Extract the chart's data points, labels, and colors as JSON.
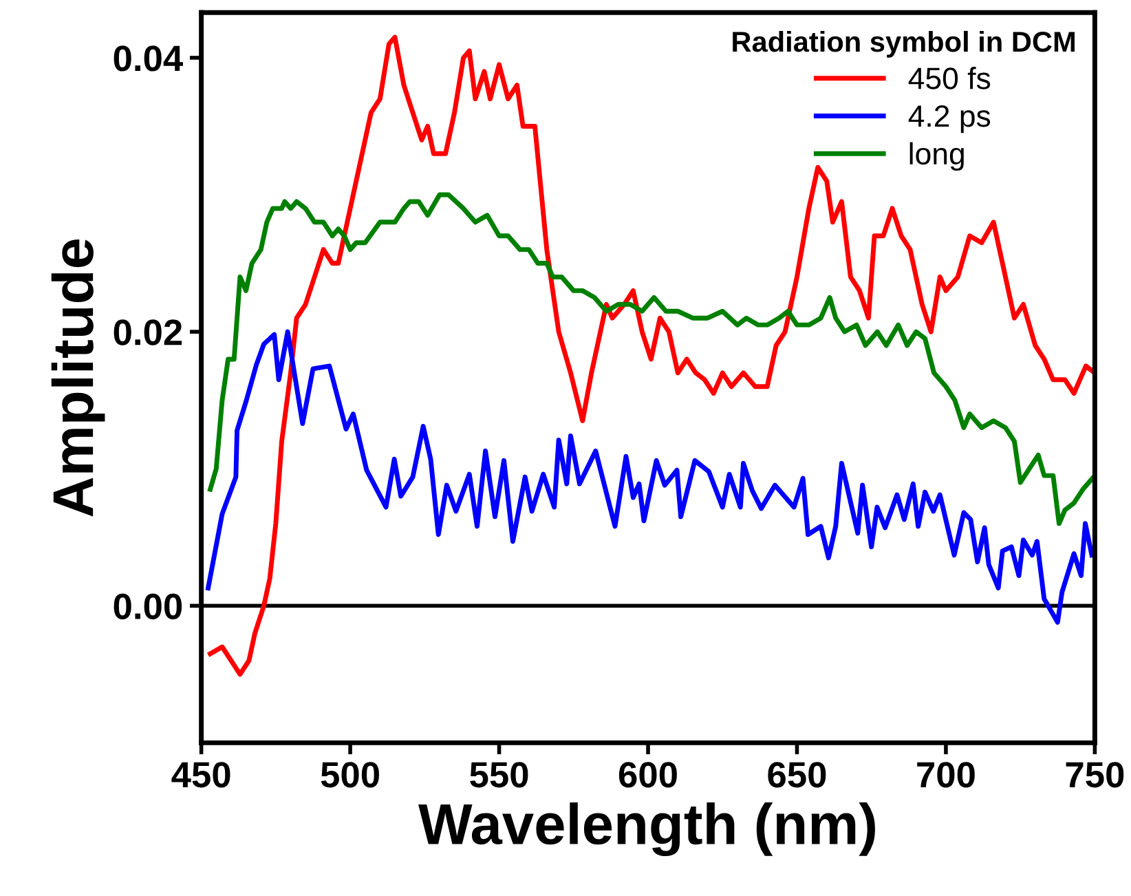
{
  "chart_data": {
    "type": "line",
    "xlabel": "Wavelength (nm)",
    "ylabel": "Amplitude",
    "legend_title": "Radiation symbol in DCM",
    "legend": "top right",
    "grid": false,
    "xlim": [
      450,
      750
    ],
    "ylim": [
      -0.01,
      0.0433
    ],
    "xticks": [
      450,
      500,
      550,
      600,
      650,
      700,
      750
    ],
    "yticks": [
      {
        "value": 0,
        "label": "0.00"
      },
      {
        "value": 0.02,
        "label": "0.02"
      },
      {
        "value": 0.04,
        "label": "0.04"
      }
    ],
    "ref_lines": [
      {
        "axis": "y",
        "value": 0,
        "label": null,
        "color": "#000000"
      }
    ],
    "series": [
      {
        "name": "450 fs",
        "color": "#ff0000",
        "x": [
          453,
          457,
          460,
          463,
          466,
          468,
          471,
          473,
          475,
          477,
          480,
          482,
          485,
          488,
          491,
          494,
          496,
          500,
          504,
          507,
          510,
          513,
          515,
          518,
          521,
          524,
          526,
          528,
          532,
          535,
          538,
          540,
          542,
          545,
          547,
          550,
          553,
          556,
          558,
          562,
          566,
          570,
          574,
          578,
          581,
          583,
          586,
          588,
          592,
          595,
          598,
          601,
          604,
          607,
          610,
          613,
          616,
          619,
          622,
          625,
          628,
          632,
          636,
          640,
          643,
          646,
          650,
          654,
          657,
          660,
          662,
          665,
          668,
          671,
          674,
          676,
          679,
          682,
          685,
          688,
          692,
          695,
          698,
          700,
          704,
          708,
          712,
          716,
          719,
          723,
          726,
          730,
          733,
          736,
          740,
          743,
          747,
          750
        ],
        "values": [
          -0.0035,
          -0.003,
          -0.004,
          -0.005,
          -0.004,
          -0.002,
          0.0,
          0.002,
          0.006,
          0.012,
          0.017,
          0.021,
          0.022,
          0.024,
          0.026,
          0.025,
          0.025,
          0.029,
          0.033,
          0.036,
          0.037,
          0.041,
          0.0415,
          0.038,
          0.036,
          0.034,
          0.035,
          0.033,
          0.033,
          0.036,
          0.04,
          0.0405,
          0.037,
          0.039,
          0.037,
          0.0395,
          0.037,
          0.038,
          0.035,
          0.035,
          0.026,
          0.02,
          0.017,
          0.0135,
          0.017,
          0.019,
          0.022,
          0.021,
          0.022,
          0.023,
          0.02,
          0.018,
          0.021,
          0.02,
          0.017,
          0.018,
          0.017,
          0.0165,
          0.0155,
          0.017,
          0.016,
          0.017,
          0.016,
          0.016,
          0.019,
          0.02,
          0.024,
          0.029,
          0.032,
          0.031,
          0.028,
          0.0295,
          0.024,
          0.023,
          0.021,
          0.027,
          0.027,
          0.029,
          0.027,
          0.026,
          0.022,
          0.02,
          0.024,
          0.023,
          0.024,
          0.027,
          0.0265,
          0.028,
          0.025,
          0.021,
          0.022,
          0.019,
          0.018,
          0.0165,
          0.0165,
          0.0155,
          0.0175,
          0.017
        ]
      },
      {
        "name": "4.2 ps",
        "color": "#0000ff",
        "x": [
          452.3,
          457,
          461.6,
          462,
          465,
          468.5,
          471,
          474.5,
          476,
          479,
          484,
          487.5,
          493,
          498.6,
          501,
          505.5,
          512,
          514.8,
          517,
          521,
          524.5,
          527,
          529.6,
          532.4,
          535.5,
          540,
          542.6,
          545.4,
          548.6,
          551.6,
          554.6,
          558.7,
          561,
          564.8,
          568.5,
          570,
          572.7,
          574,
          577,
          582.4,
          588.9,
          592.6,
          595,
          597,
          598.6,
          602.8,
          605.6,
          609.7,
          611,
          615.7,
          620.4,
          625,
          627.3,
          631,
          632,
          635,
          638,
          642.6,
          649,
          652,
          653.7,
          658,
          660.6,
          663,
          665,
          670.4,
          672,
          675,
          676.9,
          679.6,
          683.6,
          686,
          689,
          690.7,
          693,
          695.8,
          698,
          702.8,
          706,
          708.3,
          710.6,
          713,
          714.4,
          717.6,
          719,
          722,
          724.5,
          726,
          729,
          730.6,
          733,
          737.5,
          739,
          743,
          745.4,
          746.8,
          749
        ],
        "values": [
          0.0013,
          0.0067,
          0.0094,
          0.0128,
          0.0149,
          0.0176,
          0.0191,
          0.0198,
          0.0165,
          0.02,
          0.0133,
          0.0173,
          0.0175,
          0.0129,
          0.014,
          0.0099,
          0.0072,
          0.0107,
          0.008,
          0.0094,
          0.0131,
          0.0107,
          0.0052,
          0.0088,
          0.0069,
          0.0096,
          0.0058,
          0.0113,
          0.0065,
          0.0106,
          0.0047,
          0.0094,
          0.0069,
          0.0096,
          0.0072,
          0.0121,
          0.0089,
          0.0124,
          0.0089,
          0.0113,
          0.0058,
          0.0109,
          0.0079,
          0.0089,
          0.0062,
          0.0106,
          0.0088,
          0.0099,
          0.0065,
          0.0106,
          0.0098,
          0.0072,
          0.0096,
          0.0072,
          0.0104,
          0.0084,
          0.0071,
          0.0088,
          0.0072,
          0.0093,
          0.0052,
          0.0058,
          0.0035,
          0.0058,
          0.0104,
          0.0053,
          0.0088,
          0.0043,
          0.0072,
          0.0057,
          0.0081,
          0.0063,
          0.0089,
          0.0058,
          0.0083,
          0.0069,
          0.0081,
          0.0037,
          0.0068,
          0.0063,
          0.0032,
          0.0057,
          0.003,
          0.0013,
          0.004,
          0.0043,
          0.0022,
          0.0048,
          0.0037,
          0.0047,
          0.0005,
          -0.0012,
          0.001,
          0.0038,
          0.0022,
          0.006,
          0.0037
        ]
      },
      {
        "name": "long",
        "color": "#008000",
        "x": [
          453,
          455,
          457,
          459,
          461,
          463,
          465,
          467,
          470,
          472,
          474,
          477,
          478,
          480,
          482,
          485,
          488,
          491,
          494,
          496,
          498,
          500,
          502,
          505,
          510,
          515,
          518,
          520,
          523,
          526,
          530,
          533,
          538,
          542,
          546,
          550,
          553,
          557,
          560,
          563,
          566,
          568,
          571,
          575,
          578,
          582,
          586,
          590,
          594,
          598,
          602,
          606,
          610,
          615,
          620,
          625,
          630,
          633,
          637,
          640,
          644,
          647,
          650,
          654,
          658,
          661,
          663,
          666,
          670,
          673,
          677,
          680,
          684,
          687,
          690,
          693,
          696,
          700,
          703,
          706,
          708,
          712,
          716,
          720,
          723,
          725,
          728,
          731,
          733,
          736,
          738,
          740,
          743,
          746,
          750
        ],
        "values": [
          0.0085,
          0.01,
          0.015,
          0.018,
          0.018,
          0.024,
          0.023,
          0.025,
          0.026,
          0.028,
          0.029,
          0.029,
          0.0295,
          0.029,
          0.0295,
          0.029,
          0.028,
          0.028,
          0.027,
          0.0275,
          0.027,
          0.026,
          0.0265,
          0.0265,
          0.028,
          0.028,
          0.029,
          0.0295,
          0.0295,
          0.0285,
          0.03,
          0.03,
          0.029,
          0.028,
          0.0285,
          0.027,
          0.027,
          0.026,
          0.026,
          0.025,
          0.025,
          0.024,
          0.024,
          0.023,
          0.023,
          0.0225,
          0.0215,
          0.022,
          0.022,
          0.0215,
          0.0225,
          0.0215,
          0.0215,
          0.021,
          0.021,
          0.0215,
          0.0205,
          0.021,
          0.0205,
          0.0205,
          0.021,
          0.0215,
          0.0205,
          0.0205,
          0.021,
          0.0225,
          0.021,
          0.02,
          0.0205,
          0.019,
          0.02,
          0.019,
          0.0205,
          0.019,
          0.02,
          0.0195,
          0.017,
          0.016,
          0.015,
          0.013,
          0.014,
          0.013,
          0.0135,
          0.013,
          0.012,
          0.009,
          0.01,
          0.011,
          0.0095,
          0.0095,
          0.006,
          0.007,
          0.0075,
          0.0085,
          0.0095
        ]
      }
    ]
  }
}
